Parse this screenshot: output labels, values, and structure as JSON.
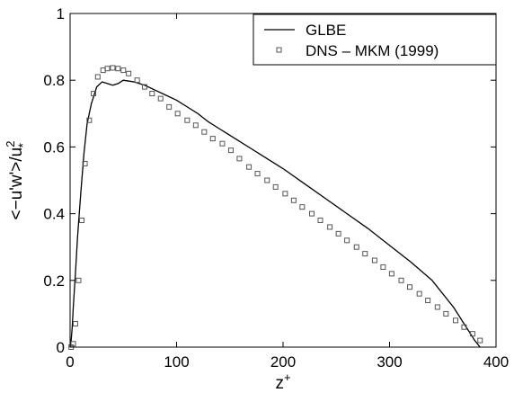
{
  "chart_data": {
    "type": "line",
    "xlabel_base": "z",
    "xlabel_sup": "+",
    "ylabel_main": "<−u'w'>/u",
    "ylabel_sup": "2",
    "ylabel_sub": "*",
    "xlim": [
      0,
      400
    ],
    "ylim": [
      0,
      1
    ],
    "xticks": [
      0,
      100,
      200,
      300,
      400
    ],
    "xtick_labels": [
      "0",
      "100",
      "200",
      "300",
      "400"
    ],
    "yticks": [
      0,
      0.2,
      0.4,
      0.6,
      0.8,
      1
    ],
    "ytick_labels": [
      "0",
      "0.2",
      "0.4",
      "0.6",
      "0.8",
      "1"
    ],
    "grid": false,
    "legend_position": "top-right",
    "series": [
      {
        "name": "GLBE",
        "style": "solid-line",
        "color": "#000000",
        "x": [
          0,
          1,
          2,
          3,
          5,
          7,
          10,
          13,
          16,
          20,
          25,
          30,
          35,
          40,
          45,
          50,
          60,
          70,
          80,
          90,
          100,
          110,
          120,
          130,
          140,
          150,
          160,
          170,
          180,
          200,
          220,
          240,
          260,
          280,
          300,
          320,
          340,
          360,
          370,
          380,
          385
        ],
        "y": [
          0,
          0.02,
          0.06,
          0.12,
          0.22,
          0.33,
          0.46,
          0.58,
          0.67,
          0.73,
          0.78,
          0.795,
          0.79,
          0.785,
          0.79,
          0.8,
          0.795,
          0.785,
          0.77,
          0.755,
          0.74,
          0.72,
          0.7,
          0.675,
          0.655,
          0.635,
          0.615,
          0.595,
          0.575,
          0.535,
          0.49,
          0.445,
          0.4,
          0.355,
          0.305,
          0.255,
          0.2,
          0.12,
          0.07,
          0.02,
          0.0
        ]
      },
      {
        "name": "DNS – MKM (1999)",
        "style": "square-marker",
        "color": "#555555",
        "x": [
          1,
          3,
          5,
          8,
          11,
          14,
          18,
          22,
          26,
          31,
          35,
          40,
          45,
          50,
          55,
          63,
          70,
          77,
          85,
          93,
          101,
          110,
          118,
          126,
          134,
          143,
          151,
          159,
          168,
          176,
          185,
          193,
          202,
          210,
          218,
          227,
          235,
          244,
          252,
          260,
          269,
          277,
          286,
          294,
          302,
          311,
          319,
          328,
          336,
          345,
          353,
          362,
          370,
          378,
          385
        ],
        "y": [
          0.0,
          0.01,
          0.07,
          0.2,
          0.38,
          0.55,
          0.68,
          0.76,
          0.81,
          0.83,
          0.835,
          0.837,
          0.835,
          0.83,
          0.82,
          0.8,
          0.78,
          0.76,
          0.745,
          0.72,
          0.7,
          0.68,
          0.665,
          0.645,
          0.625,
          0.61,
          0.59,
          0.565,
          0.54,
          0.52,
          0.5,
          0.48,
          0.46,
          0.44,
          0.42,
          0.4,
          0.38,
          0.36,
          0.34,
          0.32,
          0.3,
          0.28,
          0.26,
          0.24,
          0.22,
          0.2,
          0.18,
          0.16,
          0.14,
          0.12,
          0.1,
          0.08,
          0.06,
          0.04,
          0.02
        ]
      }
    ]
  }
}
